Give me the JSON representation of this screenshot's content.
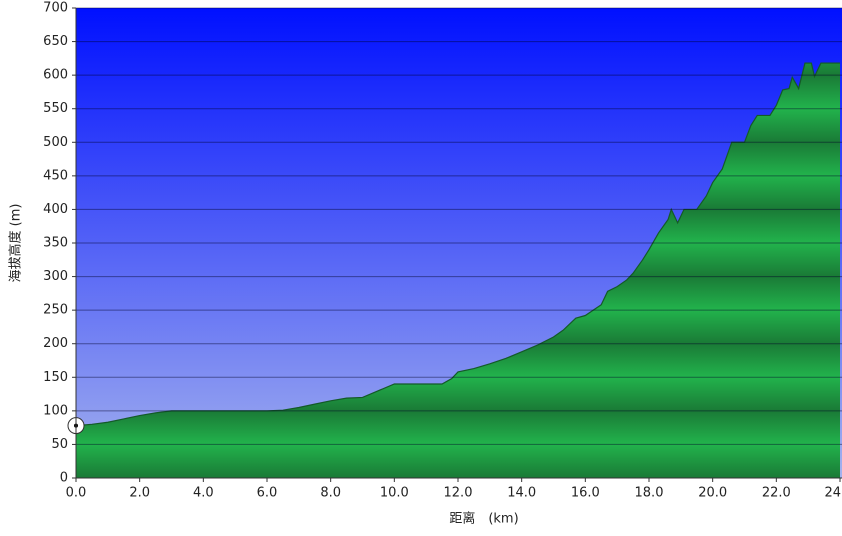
{
  "chart_data": {
    "type": "area",
    "x_label": "距离　(km)",
    "y_label": "海拔高度 (m)",
    "x": [
      0,
      0.5,
      1,
      1.5,
      2,
      2.5,
      3,
      4,
      5,
      6,
      6.5,
      7,
      7.5,
      8,
      8.5,
      9,
      9.5,
      10,
      11,
      11.5,
      11.8,
      12,
      12.5,
      13,
      13.5,
      14,
      14.5,
      15,
      15.3,
      15.7,
      16,
      16.5,
      16.7,
      17,
      17.3,
      17.5,
      17.8,
      18,
      18.3,
      18.6,
      18.7,
      18.9,
      19.1,
      19.5,
      19.8,
      20,
      20.3,
      20.6,
      21,
      21.2,
      21.4,
      21.8,
      22,
      22.2,
      22.4,
      22.5,
      22.7,
      22.9,
      23.1,
      23.2,
      23.4,
      24
    ],
    "series": [
      {
        "name": "elevation",
        "color": "#1fa84a",
        "values": [
          78,
          80,
          83,
          88,
          93,
          97,
          100,
          100,
          100,
          100,
          101,
          105,
          110,
          115,
          119,
          120,
          130,
          140,
          140,
          140,
          148,
          158,
          163,
          170,
          178,
          188,
          198,
          210,
          220,
          238,
          242,
          258,
          278,
          285,
          295,
          305,
          325,
          340,
          365,
          385,
          400,
          380,
          400,
          400,
          420,
          440,
          460,
          500,
          500,
          525,
          540,
          540,
          555,
          578,
          580,
          597,
          580,
          618,
          618,
          598,
          618,
          618
        ]
      }
    ],
    "xlim": [
      0,
      24
    ],
    "xticks": [
      {
        "value": 0,
        "label": "0.0"
      },
      {
        "value": 2,
        "label": "2.0"
      },
      {
        "value": 4,
        "label": "4.0"
      },
      {
        "value": 6,
        "label": "6.0"
      },
      {
        "value": 8,
        "label": "8.0"
      },
      {
        "value": 10,
        "label": "10.0"
      },
      {
        "value": 12,
        "label": "12.0"
      },
      {
        "value": 14,
        "label": "14.0"
      },
      {
        "value": 16,
        "label": "16.0"
      },
      {
        "value": 18,
        "label": "18.0"
      },
      {
        "value": 20,
        "label": "20.0"
      },
      {
        "value": 22,
        "label": "22.0"
      },
      {
        "value": 24,
        "label": "24"
      }
    ],
    "ylim": [
      0,
      700
    ],
    "yticks": [
      0,
      50,
      100,
      150,
      200,
      250,
      300,
      350,
      400,
      450,
      500,
      550,
      600,
      650,
      700
    ],
    "grid": true
  }
}
